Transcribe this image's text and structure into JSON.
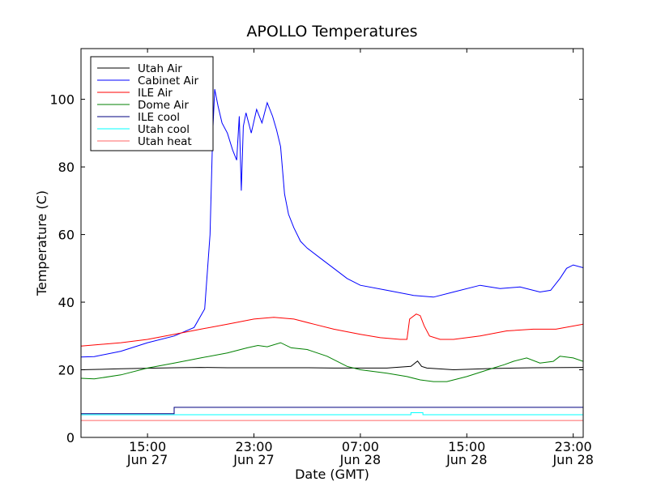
{
  "chart_data": {
    "type": "line",
    "title": "APOLLO Temperatures",
    "xlabel": "Date (GMT)",
    "ylabel": "Temperature (C)",
    "ylim": [
      0,
      115
    ],
    "xlim_hours": [
      10.0,
      47.75
    ],
    "x_unit": "hours since Jun 27 00:00 GMT",
    "yticks": [
      0,
      20,
      40,
      60,
      80,
      100
    ],
    "xticks": [
      {
        "hour": 15,
        "time": "15:00",
        "date": "Jun 27"
      },
      {
        "hour": 23,
        "time": "23:00",
        "date": "Jun 27"
      },
      {
        "hour": 31,
        "time": "07:00",
        "date": "Jun 28"
      },
      {
        "hour": 39,
        "time": "15:00",
        "date": "Jun 28"
      },
      {
        "hour": 47,
        "time": "23:00",
        "date": "Jun 28"
      }
    ],
    "legend_position": "upper-left",
    "series": [
      {
        "name": "Utah Air",
        "color": "#000000",
        "x": [
          10.0,
          13,
          17,
          19,
          21,
          25,
          27,
          29,
          31,
          33,
          34.8,
          35.3,
          35.6,
          36,
          38,
          41,
          44,
          47.75
        ],
        "y": [
          20.0,
          20.3,
          20.6,
          20.7,
          20.6,
          20.6,
          20.6,
          20.5,
          20.5,
          20.5,
          21.0,
          22.6,
          21.0,
          20.5,
          20.0,
          20.4,
          20.6,
          20.7
        ]
      },
      {
        "name": "Cabinet Air",
        "color": "#0000ff",
        "x": [
          10.0,
          11,
          13,
          15,
          17,
          18.5,
          19.3,
          19.7,
          19.9,
          20.05,
          20.3,
          20.6,
          21,
          21.4,
          21.7,
          21.9,
          22.05,
          22.2,
          22.4,
          22.8,
          23.2,
          23.6,
          24.0,
          24.4,
          24.7,
          25,
          25.3,
          25.6,
          26,
          26.5,
          27,
          28,
          29,
          30,
          31,
          33,
          35,
          36.5,
          38,
          40,
          41.5,
          43,
          44.5,
          45.3,
          46,
          46.5,
          47,
          47.75
        ],
        "y": [
          23.8,
          23.9,
          25.5,
          28.0,
          30.0,
          32.5,
          38.0,
          60.0,
          90.0,
          103.0,
          98.0,
          93.0,
          90.0,
          85.0,
          82.0,
          95.0,
          73.0,
          92.0,
          96.0,
          90.0,
          97.0,
          93.0,
          99.0,
          95.0,
          91.0,
          86.0,
          72.0,
          66.0,
          62.0,
          58.0,
          56.0,
          53.0,
          50.0,
          47.0,
          45.0,
          43.5,
          42.0,
          41.5,
          43.0,
          45.0,
          44.0,
          44.5,
          43.0,
          43.5,
          47.0,
          50.0,
          51.0,
          50.2
        ]
      },
      {
        "name": "ILE Air",
        "color": "#ff0000",
        "x": [
          10.0,
          13,
          15,
          17,
          19,
          21,
          23,
          24.5,
          26,
          27.5,
          29,
          31,
          32.5,
          34,
          34.5,
          34.7,
          35.2,
          35.5,
          35.8,
          36.2,
          37,
          38,
          40,
          42,
          44,
          45.7,
          47.75
        ],
        "y": [
          27.0,
          28.0,
          29.0,
          30.5,
          32.0,
          33.5,
          35.0,
          35.5,
          35.0,
          33.5,
          32.0,
          30.5,
          29.5,
          29.0,
          29.0,
          35.0,
          36.5,
          36.0,
          33.0,
          30.0,
          29.0,
          29.0,
          30.0,
          31.5,
          32.0,
          32.0,
          33.5
        ]
      },
      {
        "name": "Dome Air",
        "color": "#008000",
        "x": [
          10.0,
          11,
          13,
          15,
          17,
          19,
          21,
          22.5,
          23.3,
          24,
          25,
          25.8,
          27,
          28.5,
          30,
          31,
          33,
          34.5,
          35.5,
          36.5,
          37.5,
          39,
          41,
          41.8,
          42.5,
          43.5,
          44.5,
          45.5,
          46,
          47,
          47.75
        ],
        "y": [
          17.5,
          17.3,
          18.5,
          20.5,
          22.0,
          23.5,
          25.0,
          26.5,
          27.2,
          26.8,
          28.0,
          26.5,
          26.0,
          24.0,
          21.0,
          20.0,
          19.0,
          18.0,
          17.0,
          16.5,
          16.5,
          18.0,
          20.5,
          21.5,
          22.5,
          23.5,
          22.0,
          22.5,
          24.0,
          23.5,
          22.5
        ]
      },
      {
        "name": "ILE cool",
        "color": "#000080",
        "x": [
          10.0,
          17.0,
          17.0,
          47.75
        ],
        "y": [
          7.0,
          7.0,
          8.9,
          8.9
        ]
      },
      {
        "name": "Utah cool",
        "color": "#00ffff",
        "x": [
          10.0,
          34.8,
          34.8,
          35.7,
          35.7,
          47.75
        ],
        "y": [
          6.7,
          6.7,
          7.3,
          7.3,
          6.7,
          6.7
        ]
      },
      {
        "name": "Utah heat",
        "color": "#ff6666",
        "x": [
          10.0,
          47.75
        ],
        "y": [
          5.0,
          5.0
        ]
      }
    ]
  }
}
